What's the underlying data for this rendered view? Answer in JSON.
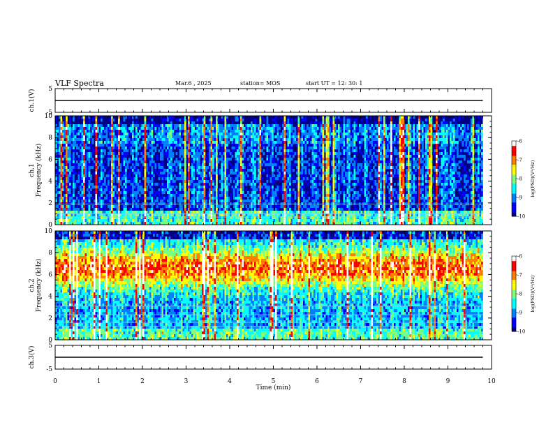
{
  "header": {
    "title": "VLF Spectra",
    "date": "Mar.6 , 2025",
    "station": "station= MOS",
    "start": "start UT = 12: 30: 1"
  },
  "colors": {
    "ink": "#000000",
    "background_spec": "#000080",
    "colormap": [
      "#00007f",
      "#0000ff",
      "#007fff",
      "#00ffff",
      "#7fff7f",
      "#ffff00",
      "#ff7f00",
      "#ff0000",
      "#ffffff"
    ]
  },
  "chart_data": [
    {
      "type": "line",
      "name": "ch1-waveform",
      "ylabel": "ch.1(V)",
      "ylim": [
        -5,
        5
      ],
      "yticks": [
        "5",
        "-5"
      ],
      "xlim": [
        0,
        10
      ],
      "x": [
        0,
        9.8
      ],
      "values": [
        0,
        0
      ]
    },
    {
      "type": "heatmap",
      "name": "ch1-spectrogram",
      "ylabel": "ch.1\nFrequency (kHz)",
      "ylabel_line1": "ch.1",
      "ylabel_line2": "Frequency (kHz)",
      "ylim": [
        0,
        10
      ],
      "yticks": [
        "0",
        "2",
        "4",
        "6",
        "8",
        "10"
      ],
      "xlim": [
        0,
        10
      ],
      "data_end_min": 9.8,
      "colorbar": {
        "label": "log(PSD)(V²/Hz)",
        "ticks": [
          "-6",
          "-7",
          "-8",
          "-9",
          "-10"
        ],
        "range": [
          -10,
          -6
        ]
      },
      "horizontal_lines_khz": [
        0.7,
        1.0,
        1.9
      ],
      "level_profile": "mostly -10 to -9 background with scattered vertical sferic streaks reaching -7 across 0-10 kHz; bright band below 1 kHz"
    },
    {
      "type": "heatmap",
      "name": "ch2-spectrogram",
      "ylabel": "ch.2\nFrequency (kHz)",
      "ylabel_line1": "ch.2",
      "ylabel_line2": "Frequency (kHz)",
      "ylim": [
        0,
        10
      ],
      "yticks": [
        "0",
        "2",
        "4",
        "6",
        "8",
        "10"
      ],
      "xlim": [
        0,
        10
      ],
      "data_end_min": 9.8,
      "colorbar": {
        "label": "log(PSD)(V²/Hz)",
        "ticks": [
          "-6",
          "-7",
          "-8",
          "-9",
          "-10"
        ],
        "range": [
          -10,
          -6
        ]
      },
      "horizontal_lines_khz": [
        1.2,
        1.6,
        2.3,
        3.1
      ],
      "level_profile": "strong broadband emission peaking near -6.5 between 5 and 8 kHz, weaker below 4 kHz and above 9 kHz"
    },
    {
      "type": "line",
      "name": "ch3-waveform",
      "ylabel": "ch.3(V)",
      "ylim": [
        -5,
        5
      ],
      "yticks": [
        "5",
        "-5"
      ],
      "xlim": [
        0,
        10
      ],
      "x": [
        0,
        9.8
      ],
      "values": [
        0,
        0
      ]
    }
  ],
  "xaxis": {
    "label": "Time (min)",
    "ticks": [
      "0",
      "1",
      "2",
      "3",
      "4",
      "5",
      "6",
      "7",
      "8",
      "9",
      "10"
    ]
  }
}
